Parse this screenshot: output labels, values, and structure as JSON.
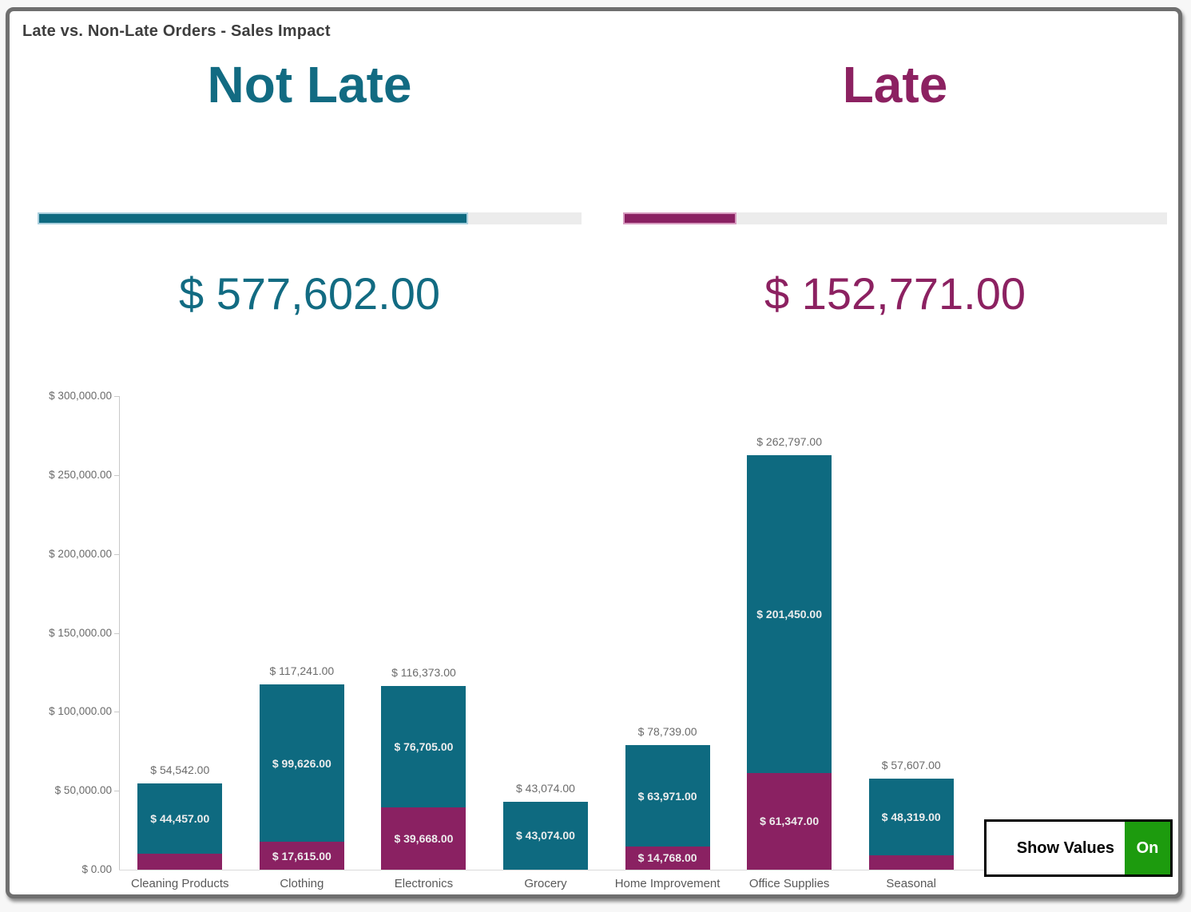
{
  "window": {
    "title": "Late vs. Non-Late Orders - Sales Impact"
  },
  "kpis": [
    {
      "label": "Not Late",
      "value": "$ 577,602.00",
      "fraction": 0.7908,
      "color": "#126b82",
      "gauge_fill_color": "#0e6a80",
      "gauge_border_color": "#a9cfdd",
      "gauge_track_color": "#ececec"
    },
    {
      "label": "Late",
      "value": "$ 152,771.00",
      "fraction": 0.2092,
      "color": "#8c2161",
      "gauge_fill_color": "#8a2162",
      "gauge_border_color": "#d79cc0",
      "gauge_track_color": "#ececec"
    }
  ],
  "chart_data": {
    "type": "bar",
    "stacked": true,
    "title": "",
    "xlabel": "",
    "ylabel": "",
    "legend": "none",
    "grid": "off",
    "ylim": [
      0,
      300000
    ],
    "ytick_labels": [
      "$ 0.00",
      "$ 50,000.00",
      "$ 100,000.00",
      "$ 150,000.00",
      "$ 200,000.00",
      "$ 250,000.00",
      "$ 300,000.00"
    ],
    "categories": [
      "Cleaning Products",
      "Clothing",
      "Electronics",
      "Grocery",
      "Home Improvement",
      "Office Supplies",
      "Seasonal"
    ],
    "series": [
      {
        "name": "Late",
        "color": "#8a2162",
        "values": [
          10085,
          17615,
          39668,
          0,
          14768,
          61347,
          9288
        ],
        "labels": [
          "",
          "$ 17,615.00",
          "$ 39,668.00",
          "",
          "$ 14,768.00",
          "$ 61,347.00",
          ""
        ]
      },
      {
        "name": "Not Late",
        "color": "#0e6a80",
        "values": [
          44457,
          99626,
          76705,
          43074,
          63971,
          201450,
          48319
        ],
        "labels": [
          "$ 44,457.00",
          "$ 99,626.00",
          "$ 76,705.00",
          "$ 43,074.00",
          "$ 63,971.00",
          "$ 201,450.00",
          "$ 48,319.00"
        ]
      }
    ],
    "totals": [
      54542,
      117241,
      116373,
      43074,
      78739,
      262797,
      57607
    ],
    "total_labels": [
      "$ 54,542.00",
      "$ 117,241.00",
      "$ 116,373.00",
      "$ 43,074.00",
      "$ 78,739.00",
      "$ 262,797.00",
      "$ 57,607.00"
    ]
  },
  "toggle": {
    "label": "Show Values",
    "state": "On",
    "on_color": "#1d9b0e"
  }
}
